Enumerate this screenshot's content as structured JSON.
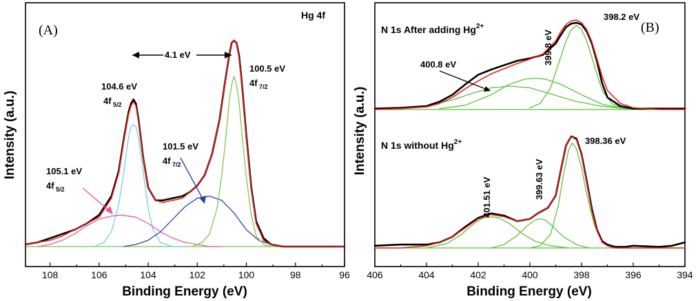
{
  "colors": {
    "experimental": "#000000",
    "envelope": "#e8201b",
    "hg_104_6": "#70cde8",
    "hg_105_1": "#e05aa8",
    "hg_101_5": "#2e3fa0",
    "hg_100_5": "#7cc84a",
    "n1s_component": "#5cbf3c"
  },
  "chart_data": [
    {
      "type": "line",
      "panel_label": "(A)",
      "title": "Hg 4f",
      "xlabel": "Binding Energy (eV)",
      "ylabel": "Intensity (a.u.)",
      "xlim": [
        109,
        96
      ],
      "x_reversed": true,
      "x_ticks": [
        "108",
        "106",
        "104",
        "102",
        "100",
        "98",
        "96"
      ],
      "y_ticks_shown": false,
      "baseline": 0.02,
      "series": [
        {
          "role": "experimental",
          "color": "#000000",
          "x": [
            109,
            108.5,
            108,
            107.5,
            107,
            106.5,
            106,
            105.5,
            105.2,
            105,
            104.8,
            104.7,
            104.6,
            104.5,
            104.4,
            104.2,
            104,
            103.7,
            103.4,
            103,
            102.6,
            102.3,
            102,
            101.7,
            101.4,
            101.1,
            100.9,
            100.7,
            100.6,
            100.5,
            100.4,
            100.3,
            100.2,
            100,
            99.8,
            99.6,
            99.3,
            99,
            98.5,
            98,
            97.5,
            97,
            96.5,
            96
          ],
          "y": [
            0.03,
            0.04,
            0.06,
            0.08,
            0.1,
            0.13,
            0.17,
            0.26,
            0.38,
            0.53,
            0.66,
            0.7,
            0.72,
            0.7,
            0.63,
            0.44,
            0.3,
            0.24,
            0.24,
            0.25,
            0.26,
            0.28,
            0.31,
            0.36,
            0.46,
            0.62,
            0.78,
            0.93,
            0.99,
            1.0,
            0.99,
            0.93,
            0.82,
            0.55,
            0.3,
            0.14,
            0.06,
            0.03,
            0.02,
            0.02,
            0.02,
            0.02,
            0.02,
            0.02
          ]
        },
        {
          "role": "envelope",
          "color": "#e8201b",
          "x": [
            109,
            108.5,
            108,
            107.5,
            107,
            106.5,
            106,
            105.5,
            105.2,
            105,
            104.8,
            104.7,
            104.6,
            104.5,
            104.4,
            104.2,
            104,
            103.7,
            103.4,
            103,
            102.6,
            102.3,
            102,
            101.7,
            101.4,
            101.1,
            100.9,
            100.7,
            100.6,
            100.5,
            100.4,
            100.3,
            100.2,
            100,
            99.8,
            99.6,
            99.3,
            99,
            98.5,
            98,
            97.5,
            97,
            96.5,
            96
          ],
          "y": [
            0.03,
            0.04,
            0.05,
            0.07,
            0.1,
            0.13,
            0.16,
            0.25,
            0.37,
            0.52,
            0.65,
            0.69,
            0.71,
            0.69,
            0.62,
            0.44,
            0.3,
            0.24,
            0.23,
            0.24,
            0.25,
            0.28,
            0.31,
            0.36,
            0.46,
            0.62,
            0.78,
            0.93,
            0.99,
            1.0,
            0.99,
            0.92,
            0.81,
            0.54,
            0.29,
            0.13,
            0.05,
            0.03,
            0.02,
            0.02,
            0.02,
            0.02,
            0.02,
            0.02
          ]
        },
        {
          "role": "component",
          "label": "104.6 eV 4f5/2",
          "color": "#70cde8",
          "x": [
            106.2,
            105.8,
            105.5,
            105.2,
            105,
            104.9,
            104.8,
            104.7,
            104.6,
            104.5,
            104.4,
            104.3,
            104.2,
            104,
            103.8,
            103.5,
            103,
            102.5
          ],
          "y": [
            0.02,
            0.04,
            0.09,
            0.22,
            0.37,
            0.46,
            0.54,
            0.59,
            0.6,
            0.59,
            0.54,
            0.46,
            0.37,
            0.2,
            0.1,
            0.04,
            0.02,
            0.02
          ]
        },
        {
          "role": "component",
          "label": "105.1 eV 4f5/2",
          "color": "#e05aa8",
          "x": [
            108.5,
            108,
            107.5,
            107,
            106.5,
            106,
            105.5,
            105.1,
            104.5,
            104,
            103.5,
            103,
            102.5,
            102,
            101.5,
            101
          ],
          "y": [
            0.02,
            0.03,
            0.05,
            0.08,
            0.12,
            0.15,
            0.165,
            0.17,
            0.16,
            0.13,
            0.09,
            0.06,
            0.04,
            0.03,
            0.02,
            0.02
          ]
        },
        {
          "role": "component",
          "label": "101.5 eV 4f7/2",
          "color": "#2e3fa0",
          "x": [
            105,
            104.5,
            104,
            103.5,
            103,
            102.5,
            102,
            101.5,
            101,
            100.5,
            100,
            99.5,
            99,
            98.5,
            98
          ],
          "y": [
            0.02,
            0.03,
            0.05,
            0.09,
            0.15,
            0.21,
            0.25,
            0.26,
            0.24,
            0.18,
            0.1,
            0.05,
            0.03,
            0.02,
            0.02
          ]
        },
        {
          "role": "component",
          "label": "100.5 eV 4f7/2",
          "color": "#7cc84a",
          "x": [
            102.2,
            101.8,
            101.5,
            101.2,
            101,
            100.8,
            100.7,
            100.6,
            100.5,
            100.4,
            100.3,
            100.2,
            100,
            99.8,
            99.6,
            99.3,
            99,
            98.6
          ],
          "y": [
            0.02,
            0.04,
            0.08,
            0.2,
            0.36,
            0.58,
            0.71,
            0.79,
            0.83,
            0.79,
            0.71,
            0.58,
            0.35,
            0.17,
            0.07,
            0.03,
            0.02,
            0.02
          ]
        }
      ],
      "annotations": [
        {
          "text": "104.6 eV",
          "sub_main": "4f",
          "sub": "5/2"
        },
        {
          "text": "105.1 eV",
          "sub_main": "4f",
          "sub": "5/2"
        },
        {
          "text": "101.5 eV",
          "sub_main": "4f",
          "sub": "7/2"
        },
        {
          "text": "100.5 eV",
          "sub_main": "4f",
          "sub": "7/2"
        },
        {
          "text": "4.1 eV"
        }
      ]
    },
    {
      "type": "line",
      "panel_label": "(B)",
      "xlabel": "Binding Energy (eV)",
      "ylabel": "Intensity (a.u.)",
      "xlim": [
        406,
        394
      ],
      "x_reversed": true,
      "x_ticks": [
        "406",
        "404",
        "402",
        "400",
        "398",
        "396",
        "394"
      ],
      "y_ticks_shown": false,
      "subplots": [
        {
          "label_main": "N 1s After adding Hg",
          "label_sup": "2+",
          "baseline": 0.0,
          "series": [
            {
              "role": "experimental",
              "color": "#000000",
              "x": [
                406,
                405,
                404,
                403.5,
                403,
                402.5,
                402,
                401.5,
                401,
                400.5,
                400,
                399.5,
                399,
                398.8,
                398.6,
                398.4,
                398.2,
                398,
                397.8,
                397.6,
                397.4,
                397.2,
                397,
                396.5,
                396,
                395,
                394
              ],
              "y": [
                0.01,
                0.02,
                0.04,
                0.09,
                0.17,
                0.29,
                0.4,
                0.46,
                0.51,
                0.56,
                0.59,
                0.63,
                0.76,
                0.86,
                0.95,
                0.99,
                1.0,
                0.98,
                0.9,
                0.76,
                0.55,
                0.3,
                0.14,
                0.04,
                0.01,
                0.01,
                0.01
              ]
            },
            {
              "role": "envelope",
              "color": "#e8201b",
              "x": [
                406,
                405,
                404,
                403.5,
                403,
                402.5,
                402,
                401.5,
                401,
                400.5,
                400,
                399.5,
                399,
                398.8,
                398.6,
                398.4,
                398.2,
                398,
                397.8,
                397.6,
                397.4,
                397.2,
                397,
                396.5,
                396,
                395,
                394
              ],
              "y": [
                0.0,
                0.01,
                0.03,
                0.07,
                0.14,
                0.24,
                0.33,
                0.41,
                0.47,
                0.53,
                0.58,
                0.64,
                0.79,
                0.9,
                0.98,
                1.02,
                1.03,
                1.0,
                0.92,
                0.78,
                0.58,
                0.38,
                0.22,
                0.07,
                0.02,
                0.0,
                0.0
              ]
            },
            {
              "role": "component",
              "label": "398.2 eV",
              "color": "#5cbf3c",
              "x": [
                400,
                399.6,
                399.2,
                398.9,
                398.6,
                398.4,
                398.2,
                398,
                397.8,
                397.5,
                397.2,
                396.8,
                396.4,
                396
              ],
              "y": [
                0.02,
                0.07,
                0.25,
                0.52,
                0.79,
                0.92,
                0.97,
                0.92,
                0.79,
                0.5,
                0.22,
                0.06,
                0.02,
                0.0
              ]
            },
            {
              "role": "component",
              "label": "399.8 eV",
              "color": "#5cbf3c",
              "x": [
                403.5,
                402.5,
                401.5,
                400.8,
                400.2,
                399.8,
                399.4,
                398.8,
                398,
                397.2,
                396.5,
                395.5
              ],
              "y": [
                0.01,
                0.05,
                0.17,
                0.29,
                0.35,
                0.36,
                0.35,
                0.29,
                0.17,
                0.06,
                0.02,
                0.0
              ]
            },
            {
              "role": "component",
              "label": "400.8 eV",
              "color": "#5cbf3c",
              "x": [
                405,
                404,
                403,
                402.2,
                401.5,
                400.8,
                400,
                399.2,
                398.3,
                397.3,
                396.3,
                395.5
              ],
              "y": [
                0.01,
                0.04,
                0.11,
                0.19,
                0.25,
                0.27,
                0.25,
                0.18,
                0.1,
                0.04,
                0.01,
                0.0
              ]
            }
          ],
          "annotations": [
            {
              "text": "398.2 eV"
            },
            {
              "text": "399.8 eV"
            },
            {
              "text": "400.8 eV"
            }
          ]
        },
        {
          "label_main": "N 1s without Hg",
          "label_sup": "2+",
          "baseline": 0.0,
          "series": [
            {
              "role": "experimental",
              "color": "#000000",
              "x": [
                406,
                405,
                404,
                403.5,
                403,
                402.5,
                402,
                401.5,
                401,
                400.5,
                400,
                399.7,
                399.3,
                399,
                398.8,
                398.6,
                398.4,
                398.2,
                398,
                397.8,
                397.6,
                397.4,
                397.2,
                397,
                396.7,
                396.3,
                396,
                395,
                394.5,
                394
              ],
              "y": [
                0.02,
                0.03,
                0.03,
                0.05,
                0.1,
                0.19,
                0.27,
                0.31,
                0.29,
                0.24,
                0.26,
                0.31,
                0.36,
                0.47,
                0.7,
                0.92,
                1.0,
                0.98,
                0.84,
                0.6,
                0.35,
                0.16,
                0.06,
                0.03,
                0.01,
                0.01,
                0.02,
                0.01,
                0.02,
                0.05
              ]
            },
            {
              "role": "envelope",
              "color": "#e8201b",
              "x": [
                406,
                405,
                404,
                403.5,
                403,
                402.5,
                402,
                401.5,
                401,
                400.5,
                400,
                399.7,
                399.3,
                399,
                398.8,
                398.6,
                398.4,
                398.2,
                398,
                397.8,
                397.6,
                397.4,
                397.2,
                397,
                396.7,
                396.3,
                396,
                395,
                394
              ],
              "y": [
                0.0,
                0.0,
                0.02,
                0.05,
                0.1,
                0.18,
                0.26,
                0.3,
                0.28,
                0.24,
                0.26,
                0.31,
                0.36,
                0.47,
                0.7,
                0.92,
                1.0,
                0.97,
                0.83,
                0.58,
                0.33,
                0.15,
                0.05,
                0.02,
                0.0,
                0.0,
                0.0,
                0.0,
                0.0
              ]
            },
            {
              "role": "component",
              "label": "398.36 eV",
              "color": "#5cbf3c",
              "x": [
                400,
                399.6,
                399.2,
                398.9,
                398.7,
                398.5,
                398.36,
                398.2,
                398,
                397.8,
                397.5,
                397.2,
                396.9,
                396.5
              ],
              "y": [
                0.0,
                0.02,
                0.12,
                0.38,
                0.66,
                0.88,
                0.94,
                0.89,
                0.72,
                0.48,
                0.2,
                0.06,
                0.01,
                0.0
              ]
            },
            {
              "role": "component",
              "label": "399.63 eV",
              "color": "#5cbf3c",
              "x": [
                401.5,
                401,
                400.5,
                400.1,
                399.8,
                399.63,
                399.4,
                399.1,
                398.7,
                398.2,
                397.7
              ],
              "y": [
                0.0,
                0.03,
                0.11,
                0.2,
                0.25,
                0.26,
                0.25,
                0.19,
                0.1,
                0.03,
                0.0
              ]
            },
            {
              "role": "component",
              "label": "401.51 eV",
              "color": "#5cbf3c",
              "x": [
                404,
                403.2,
                402.6,
                402.1,
                401.8,
                401.51,
                401.2,
                400.8,
                400.3,
                399.8,
                399.2,
                398.5
              ],
              "y": [
                0.0,
                0.04,
                0.13,
                0.23,
                0.27,
                0.28,
                0.27,
                0.22,
                0.13,
                0.06,
                0.02,
                0.0
              ]
            }
          ],
          "annotations": [
            {
              "text": "398.36 eV"
            },
            {
              "text": "399.63 eV"
            },
            {
              "text": "401.51 eV"
            }
          ]
        }
      ]
    }
  ]
}
